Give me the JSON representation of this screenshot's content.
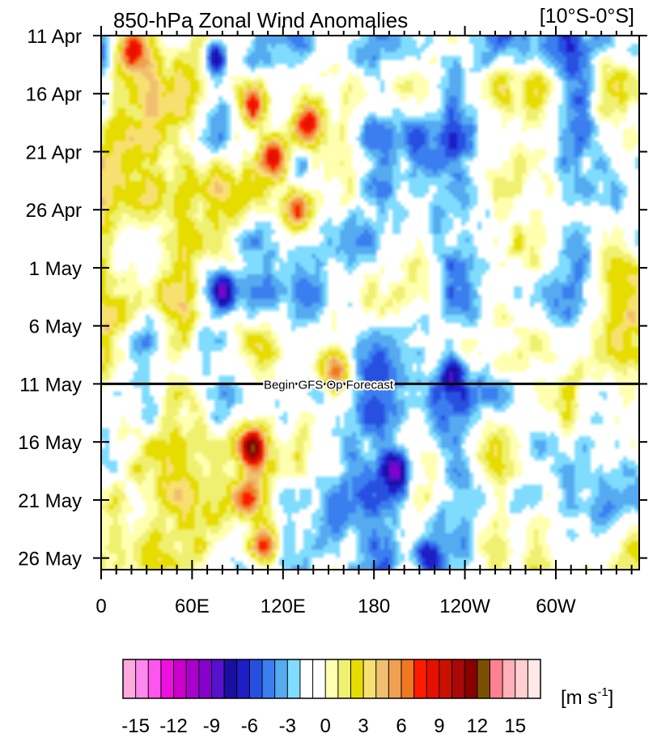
{
  "chart_data": {
    "type": "heatmap",
    "title": "850-hPa Zonal Wind Anomalies",
    "region_label": "[10°S-0°S]",
    "x_axis": {
      "tick_labels": [
        "0",
        "60E",
        "120E",
        "180",
        "120W",
        "60W"
      ],
      "tick_degrees_east": [
        0,
        60,
        120,
        180,
        240,
        300
      ],
      "range_degrees_east": [
        0,
        355
      ]
    },
    "y_axis": {
      "tick_labels": [
        "11 Apr",
        "16 Apr",
        "21 Apr",
        "26 Apr",
        "1 May",
        "6 May",
        "11 May",
        "16 May",
        "21 May",
        "26 May"
      ],
      "tick_days": [
        0,
        5,
        10,
        15,
        20,
        25,
        30,
        35,
        40,
        45
      ],
      "range_days": [
        0,
        46
      ],
      "direction": "time increases downward"
    },
    "forecast_marker": {
      "label": "Begin GFS Op Forecast",
      "day": 30
    },
    "colorbar": {
      "unit_label": "[m s",
      "unit_exponent": "-1",
      "unit_close": "]",
      "tick_labels": [
        "-15",
        "-12",
        "-9",
        "-6",
        "-3",
        "0",
        "3",
        "6",
        "9",
        "12",
        "15"
      ],
      "levels_start": -16,
      "level_step": 1,
      "colors": [
        "#ffaadd",
        "#ff88ee",
        "#ff55ee",
        "#ee11dd",
        "#cc00cc",
        "#aa00cc",
        "#8800cc",
        "#5511cc",
        "#1a0fa0",
        "#1e1ec8",
        "#2850e0",
        "#3b7ef0",
        "#55aaf0",
        "#80dcff",
        "#ffffff",
        "#ffffff",
        "#ffffb0",
        "#f0f070",
        "#e6dc00",
        "#f8e070",
        "#f0c070",
        "#f0a050",
        "#f07820",
        "#ff1a00",
        "#e61000",
        "#cc1000",
        "#aa0808",
        "#8a0000",
        "#7a5000",
        "#ff8090",
        "#ffb0b8",
        "#ffd0d0",
        "#ffe8e8"
      ]
    },
    "features": [
      {
        "kind": "westerly",
        "lon_e": 20,
        "day": 0.8,
        "value": 6
      },
      {
        "kind": "easterly",
        "lon_e": 75,
        "day": 1.5,
        "value": -8
      },
      {
        "kind": "westerly",
        "lon_e": 100,
        "day": 6,
        "value": 9
      },
      {
        "kind": "westerly",
        "lon_e": 113,
        "day": 10.5,
        "value": 10
      },
      {
        "kind": "westerly",
        "lon_e": 135,
        "day": 7.5,
        "value": 10
      },
      {
        "kind": "westerly",
        "lon_e": 130,
        "day": 15,
        "value": 11
      },
      {
        "kind": "easterly",
        "lon_e": 80,
        "day": 22,
        "value": -8
      },
      {
        "kind": "westerly",
        "lon_e": 155,
        "day": 29,
        "value": 8
      },
      {
        "kind": "easterly",
        "lon_e": 232,
        "day": 29,
        "value": -6
      },
      {
        "kind": "westerly",
        "lon_e": 100,
        "day": 35.5,
        "value": 10
      },
      {
        "kind": "westerly",
        "lon_e": 97,
        "day": 40,
        "value": 8
      },
      {
        "kind": "westerly",
        "lon_e": 108,
        "day": 44,
        "value": 9
      },
      {
        "kind": "easterly",
        "lon_e": 195,
        "day": 37.5,
        "value": -7
      },
      {
        "kind": "easterly",
        "lon_e": 215,
        "day": 45,
        "value": -6
      }
    ],
    "grid": false
  }
}
